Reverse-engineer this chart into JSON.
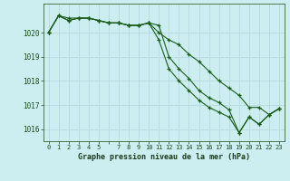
{
  "title": "Graphe pression niveau de la mer (hPa)",
  "background_color": "#cceef0",
  "grid_color": "#b8dce0",
  "line_color": "#1a5c1a",
  "xlim": [
    -0.5,
    23.5
  ],
  "ylim": [
    1015.5,
    1021.2
  ],
  "yticks": [
    1016,
    1017,
    1018,
    1019,
    1020
  ],
  "x_labels": [
    "0",
    "1",
    "2",
    "3",
    "4",
    "5",
    "",
    "7",
    "8",
    "9",
    "10",
    "11",
    "12",
    "13",
    "14",
    "15",
    "16",
    "17",
    "18",
    "19",
    "20",
    "21",
    "22",
    "23"
  ],
  "series1": [
    1020.0,
    1020.7,
    1020.6,
    1020.6,
    1020.6,
    1020.5,
    1020.4,
    1020.4,
    1020.3,
    1020.3,
    1020.4,
    1020.0,
    1019.7,
    1019.5,
    1019.1,
    1018.8,
    1018.4,
    1018.0,
    1017.7,
    1017.4,
    1016.9,
    1016.9,
    1016.6,
    1016.85
  ],
  "series2": [
    1020.0,
    1020.7,
    1020.5,
    1020.6,
    1020.6,
    1020.5,
    1020.4,
    1020.4,
    1020.3,
    1020.3,
    1020.4,
    1020.3,
    1019.0,
    1018.5,
    1018.1,
    1017.6,
    1017.3,
    1017.1,
    1016.8,
    1015.85,
    1016.5,
    1016.2,
    1016.6,
    1016.85
  ],
  "series3": [
    1020.0,
    1020.7,
    1020.5,
    1020.6,
    1020.6,
    1020.5,
    1020.4,
    1020.4,
    1020.3,
    1020.3,
    1020.4,
    1019.7,
    1018.5,
    1018.0,
    1017.6,
    1017.2,
    1016.9,
    1016.7,
    1016.5,
    1015.85,
    1016.5,
    1016.2,
    1016.6,
    1016.85
  ]
}
